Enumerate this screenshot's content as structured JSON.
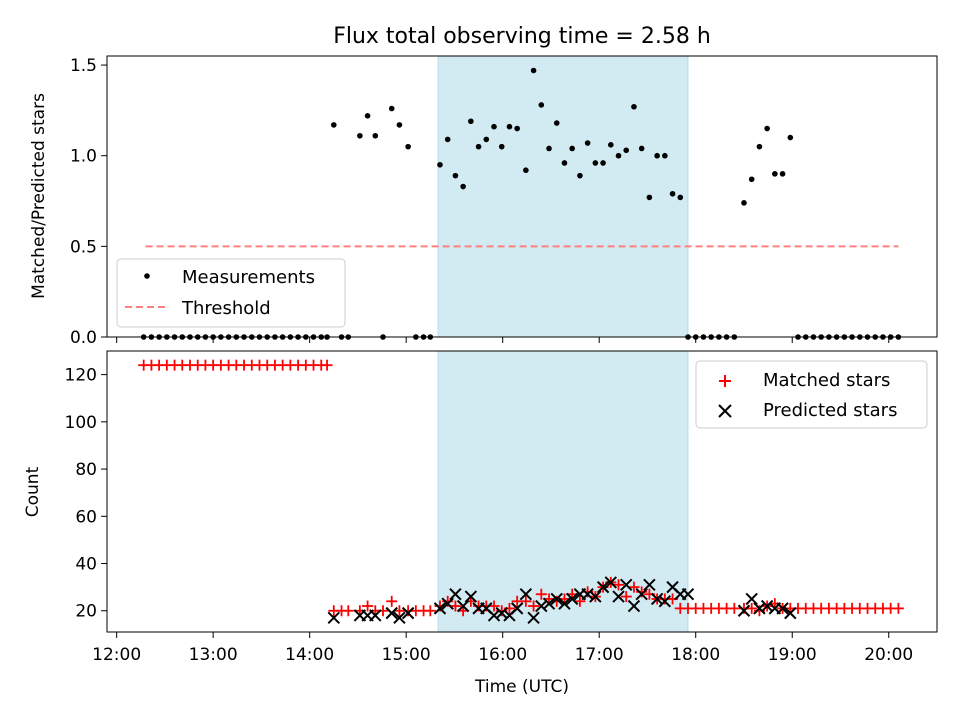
{
  "chart_data": [
    {
      "type": "scatter",
      "title": "Flux total observing time = 2.58 h",
      "xlabel": "",
      "ylabel": "Matched/Predicted stars",
      "xlim": [
        11.9,
        20.5
      ],
      "ylim": [
        0.0,
        1.55
      ],
      "yticks": [
        0.0,
        0.5,
        1.0,
        1.5
      ],
      "ytick_labels": [
        "0.0",
        "0.5",
        "1.0",
        "1.5"
      ],
      "xticks": [
        12,
        13,
        14,
        15,
        16,
        17,
        18,
        19,
        20
      ],
      "shaded_span": [
        15.33,
        17.92
      ],
      "threshold": {
        "name": "Threshold",
        "value": 0.5,
        "x_range": [
          12.3,
          20.1
        ],
        "color": "#ff7f7f"
      },
      "legend": {
        "location": "lower-left",
        "entries": [
          "Measurements",
          "Threshold"
        ]
      },
      "series": [
        {
          "name": "Measurements",
          "color": "#000000",
          "x": [
            12.28,
            12.36,
            12.44,
            12.52,
            12.6,
            12.68,
            12.76,
            12.84,
            12.92,
            13.0,
            13.08,
            13.16,
            13.24,
            13.32,
            13.4,
            13.48,
            13.56,
            13.64,
            13.72,
            13.8,
            13.88,
            13.96,
            14.04,
            14.12,
            14.18,
            14.25,
            14.33,
            14.4,
            14.52,
            14.6,
            14.68,
            14.76,
            14.85,
            14.93,
            15.02,
            15.1,
            15.18,
            15.25,
            15.35,
            15.43,
            15.51,
            15.59,
            15.67,
            15.75,
            15.83,
            15.91,
            15.99,
            16.07,
            16.15,
            16.24,
            16.32,
            16.4,
            16.48,
            16.56,
            16.64,
            16.72,
            16.8,
            16.88,
            16.96,
            17.04,
            17.12,
            17.2,
            17.28,
            17.36,
            17.44,
            17.52,
            17.6,
            17.68,
            17.76,
            17.84,
            17.92,
            18.0,
            18.08,
            18.16,
            18.24,
            18.32,
            18.4,
            18.5,
            18.58,
            18.66,
            18.74,
            18.82,
            18.9,
            18.98,
            19.06,
            19.14,
            19.22,
            19.3,
            19.38,
            19.46,
            19.54,
            19.62,
            19.7,
            19.78,
            19.86,
            19.94,
            20.02,
            20.1
          ],
          "y": [
            0,
            0,
            0,
            0,
            0,
            0,
            0,
            0,
            0,
            0,
            0,
            0,
            0,
            0,
            0,
            0,
            0,
            0,
            0,
            0,
            0,
            0,
            0,
            0,
            0,
            1.17,
            0,
            0,
            1.11,
            1.22,
            1.11,
            0,
            1.26,
            1.17,
            1.05,
            0,
            0,
            0,
            0.95,
            1.09,
            0.89,
            0.83,
            1.19,
            1.05,
            1.09,
            1.16,
            1.05,
            1.16,
            1.15,
            0.92,
            1.47,
            1.28,
            1.04,
            1.18,
            0.96,
            1.04,
            0.89,
            1.07,
            0.96,
            0.96,
            1.06,
            1.0,
            1.03,
            1.27,
            1.04,
            0.77,
            1.0,
            1.0,
            0.79,
            0.77,
            0,
            0,
            0,
            0,
            0,
            0,
            0,
            0.74,
            0.87,
            1.05,
            1.15,
            0.9,
            0.9,
            1.1,
            0,
            0,
            0,
            0,
            0,
            0,
            0,
            0,
            0,
            0,
            0,
            0,
            0,
            0
          ]
        }
      ]
    },
    {
      "type": "scatter",
      "title": "",
      "xlabel": "Time (UTC)",
      "ylabel": "Count",
      "xlim": [
        11.9,
        20.5
      ],
      "ylim": [
        11,
        130
      ],
      "yticks": [
        20,
        40,
        60,
        80,
        100,
        120
      ],
      "ytick_labels": [
        "20",
        "40",
        "60",
        "80",
        "100",
        "120"
      ],
      "xticks": [
        12,
        13,
        14,
        15,
        16,
        17,
        18,
        19,
        20
      ],
      "xtick_labels": [
        "12:00",
        "13:00",
        "14:00",
        "15:00",
        "16:00",
        "17:00",
        "18:00",
        "19:00",
        "20:00"
      ],
      "shaded_span": [
        15.33,
        17.92
      ],
      "legend": {
        "location": "top-right",
        "entries": [
          "Matched stars",
          "Predicted stars"
        ]
      },
      "series": [
        {
          "name": "Matched stars",
          "color": "#ff0000",
          "x": [
            12.28,
            12.36,
            12.44,
            12.52,
            12.6,
            12.68,
            12.76,
            12.84,
            12.92,
            13.0,
            13.08,
            13.16,
            13.24,
            13.32,
            13.4,
            13.48,
            13.56,
            13.64,
            13.72,
            13.8,
            13.88,
            13.96,
            14.04,
            14.12,
            14.18,
            14.25,
            14.33,
            14.4,
            14.52,
            14.6,
            14.68,
            14.76,
            14.85,
            14.93,
            15.02,
            15.1,
            15.18,
            15.25,
            15.35,
            15.43,
            15.51,
            15.59,
            15.67,
            15.75,
            15.83,
            15.91,
            15.99,
            16.07,
            16.15,
            16.24,
            16.32,
            16.4,
            16.48,
            16.56,
            16.64,
            16.72,
            16.8,
            16.88,
            16.96,
            17.04,
            17.12,
            17.2,
            17.28,
            17.36,
            17.44,
            17.52,
            17.6,
            17.68,
            17.76,
            17.84,
            17.92,
            18.0,
            18.08,
            18.16,
            18.24,
            18.32,
            18.4,
            18.5,
            18.58,
            18.66,
            18.74,
            18.82,
            18.9,
            18.98,
            19.06,
            19.14,
            19.22,
            19.3,
            19.38,
            19.46,
            19.54,
            19.62,
            19.7,
            19.78,
            19.86,
            19.94,
            20.02,
            20.1
          ],
          "y": [
            124,
            124,
            124,
            124,
            124,
            124,
            124,
            124,
            124,
            124,
            124,
            124,
            124,
            124,
            124,
            124,
            124,
            124,
            124,
            124,
            124,
            124,
            124,
            124,
            124,
            20,
            20,
            20,
            20,
            22,
            20,
            20,
            24,
            20,
            20,
            20,
            20,
            20,
            22,
            24,
            22,
            20,
            24,
            22,
            22,
            22,
            20,
            21,
            24,
            24,
            22,
            27,
            25,
            24,
            25,
            27,
            24,
            28,
            26,
            30,
            32,
            31,
            26,
            30,
            28,
            27,
            25,
            25,
            25,
            21,
            21,
            21,
            21,
            21,
            21,
            21,
            21,
            21,
            21,
            20,
            22,
            23,
            21,
            21,
            21,
            21,
            21,
            21,
            21,
            21,
            21,
            21,
            21,
            21,
            21,
            21,
            21,
            21
          ]
        },
        {
          "name": "Predicted stars",
          "color": "#000000",
          "x": [
            14.25,
            14.52,
            14.6,
            14.68,
            14.85,
            14.93,
            15.02,
            15.35,
            15.43,
            15.51,
            15.59,
            15.67,
            15.75,
            15.83,
            15.91,
            15.99,
            16.07,
            16.15,
            16.24,
            16.32,
            16.4,
            16.48,
            16.56,
            16.64,
            16.72,
            16.8,
            16.88,
            16.96,
            17.04,
            17.12,
            17.2,
            17.28,
            17.36,
            17.44,
            17.52,
            17.6,
            17.68,
            17.76,
            17.84,
            17.92,
            18.5,
            18.58,
            18.66,
            18.74,
            18.82,
            18.9,
            18.98
          ],
          "y": [
            17,
            18,
            18,
            18,
            19,
            17,
            19,
            21,
            23,
            27,
            22,
            26,
            21,
            21,
            18,
            19,
            18,
            21,
            27,
            17,
            22,
            23,
            25,
            23,
            25,
            27,
            27,
            26,
            30,
            32,
            26,
            31,
            22,
            27,
            31,
            25,
            24,
            30,
            27,
            27,
            20,
            25,
            21,
            22,
            21,
            21,
            19
          ]
        }
      ]
    }
  ]
}
